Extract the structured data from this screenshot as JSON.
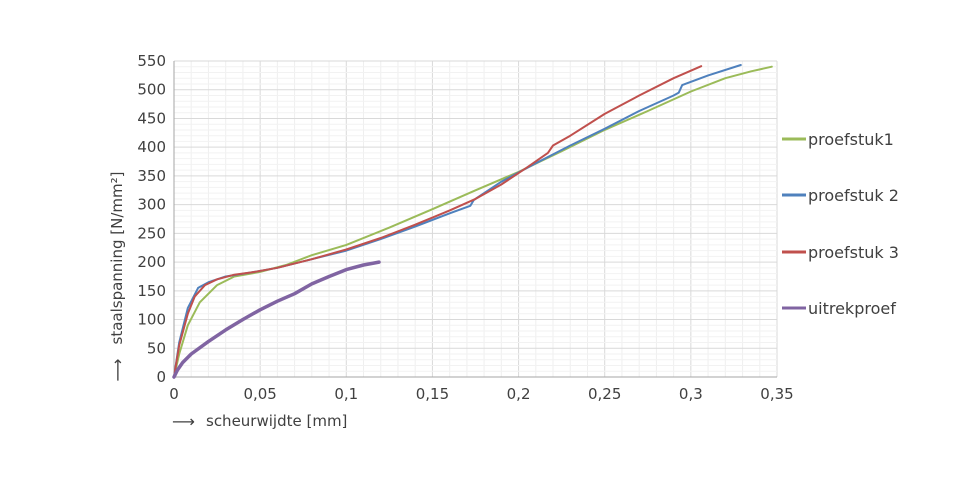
{
  "chart_data": {
    "type": "line",
    "title": "",
    "xlabel": "scheurwijdte [mm]",
    "ylabel": "staalspanning [N/mm²]",
    "axis_arrow": "⟶",
    "xlim": [
      0,
      0.35
    ],
    "ylim": [
      0,
      550
    ],
    "x_ticks": [
      0,
      0.05,
      0.1,
      0.15,
      0.2,
      0.25,
      0.3,
      0.35
    ],
    "x_tick_labels": [
      "0",
      "0,05",
      "0,1",
      "0,15",
      "0,2",
      "0,25",
      "0,3",
      "0,35"
    ],
    "y_ticks": [
      0,
      50,
      100,
      150,
      200,
      250,
      300,
      350,
      400,
      450,
      500,
      550
    ],
    "y_tick_labels": [
      "0",
      "50",
      "100",
      "150",
      "200",
      "250",
      "300",
      "350",
      "400",
      "450",
      "500",
      "550"
    ],
    "grid": true,
    "legend_position": "right",
    "series": [
      {
        "name": "proefstuk1",
        "color": "#9BBB59",
        "x": [
          0,
          0.003,
          0.008,
          0.015,
          0.025,
          0.035,
          0.05,
          0.065,
          0.08,
          0.1,
          0.125,
          0.15,
          0.175,
          0.2,
          0.225,
          0.25,
          0.275,
          0.3,
          0.32,
          0.335,
          0.347
        ],
        "y": [
          0,
          40,
          90,
          130,
          160,
          175,
          183,
          195,
          212,
          230,
          260,
          292,
          325,
          357,
          393,
          430,
          463,
          497,
          520,
          532,
          540
        ]
      },
      {
        "name": "proefstuk 2",
        "color": "#4F81BD",
        "x": [
          0,
          0.003,
          0.008,
          0.014,
          0.02,
          0.03,
          0.045,
          0.06,
          0.08,
          0.1,
          0.12,
          0.14,
          0.16,
          0.172,
          0.174,
          0.19,
          0.21,
          0.23,
          0.25,
          0.27,
          0.29,
          0.293,
          0.295,
          0.31,
          0.329
        ],
        "y": [
          0,
          60,
          120,
          155,
          165,
          175,
          182,
          190,
          205,
          220,
          240,
          262,
          285,
          298,
          308,
          340,
          372,
          403,
          432,
          463,
          490,
          495,
          508,
          525,
          543
        ]
      },
      {
        "name": "proefstuk 3",
        "color": "#C0504D",
        "x": [
          0,
          0.003,
          0.008,
          0.012,
          0.018,
          0.025,
          0.035,
          0.045,
          0.06,
          0.08,
          0.1,
          0.12,
          0.14,
          0.16,
          0.175,
          0.19,
          0.205,
          0.217,
          0.22,
          0.23,
          0.25,
          0.27,
          0.29,
          0.306
        ],
        "y": [
          0,
          55,
          110,
          140,
          160,
          170,
          178,
          182,
          190,
          205,
          222,
          242,
          265,
          290,
          310,
          335,
          365,
          390,
          403,
          420,
          458,
          490,
          520,
          541
        ]
      },
      {
        "name": "uitrekproef",
        "color": "#8064A2",
        "x": [
          0,
          0.002,
          0.005,
          0.01,
          0.02,
          0.03,
          0.04,
          0.05,
          0.06,
          0.07,
          0.08,
          0.09,
          0.1,
          0.11,
          0.119
        ],
        "y": [
          0,
          12,
          25,
          40,
          62,
          82,
          100,
          117,
          132,
          145,
          162,
          175,
          187,
          195,
          200
        ]
      }
    ]
  }
}
